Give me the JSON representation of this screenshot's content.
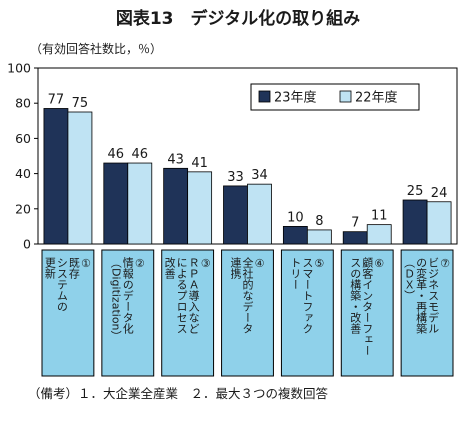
{
  "title": "図表13　デジタル化の取り組み",
  "unit_label": "（有効回答社数比，％）",
  "note": "（備考）１．大企業全産業　２．最大３つの複数回答",
  "colors": {
    "series_23": "#1f3358",
    "series_22": "#bfe3f3",
    "category_box": "#8fd1ea",
    "axis": "#000000"
  },
  "chart_data": {
    "type": "bar",
    "title": "図表13　デジタル化の取り組み",
    "ylabel": "（有効回答社数比，％）",
    "ylim": [
      0,
      100
    ],
    "yticks": [
      0,
      20,
      40,
      60,
      80,
      100
    ],
    "grid": false,
    "legend_position": "top-right",
    "categories": [
      "①更新既存システムの",
      "②情報のデータ化（Digitization）",
      "③ＲＰＡ導入などによるプロセス改善",
      "④全社的なデータ連携",
      "⑤スマートファクトリー",
      "⑥顧客インターフェースの構築・改善",
      "⑦ビジネスモデルの変革・再構築（ＤＸ）"
    ],
    "category_lines": [
      [
        "①",
        "既存",
        "システムの",
        "更新"
      ],
      [
        "②",
        "情報のデータ化",
        "（Digitization）"
      ],
      [
        "③",
        "ＲＰＡ導入など",
        "によるプロセス",
        "改善"
      ],
      [
        "④",
        "全社的なデータ",
        "連携"
      ],
      [
        "⑤",
        "スマートファク",
        "トリー"
      ],
      [
        "⑥",
        "顧客インターフェー",
        "スの構築・改善"
      ],
      [
        "⑦",
        "ビジネスモデル",
        "の変革・再構築",
        "（ＤＸ）"
      ]
    ],
    "series": [
      {
        "name": "23年度",
        "values": [
          77,
          46,
          43,
          33,
          10,
          7,
          25
        ]
      },
      {
        "name": "22年度",
        "values": [
          75,
          46,
          41,
          34,
          8,
          11,
          24
        ]
      }
    ]
  }
}
